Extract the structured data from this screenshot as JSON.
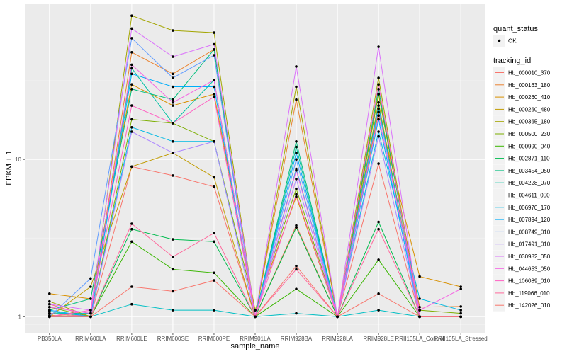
{
  "chart_data": {
    "type": "line",
    "title": "",
    "xlabel": "sample_name",
    "ylabel": "FPKM + 1",
    "yscale": "log10",
    "ylim": [
      0.79,
      98
    ],
    "y_ticks": [
      1,
      10
    ],
    "y_tick_labels": [
      "1",
      "10"
    ],
    "grid": true,
    "legend_placement": "right",
    "categories": [
      "PB350LA",
      "RRIM600LA",
      "RRIM600LE",
      "RRIM600SE",
      "RRIM600PE",
      "RRIM901LA",
      "RRIM928BA",
      "RRIM928LA",
      "RRIM928LE",
      "RRII105LA_Control",
      "RRII105LA_Stressed"
    ],
    "point_legend": {
      "title": "quant_status",
      "entries": [
        {
          "label": "OK",
          "color": "#000000"
        }
      ]
    },
    "line_legend_title": "tracking_id",
    "series": [
      {
        "name": "Hb_000010_370",
        "color": "#F8766D",
        "values": [
          1.2,
          1.0,
          9.0,
          7.9,
          6.7,
          1.0,
          3.8,
          1.0,
          9.4,
          1.0,
          1.0
        ]
      },
      {
        "name": "Hb_000163_180",
        "color": "#EA8331",
        "values": [
          1.02,
          1.0,
          48,
          35,
          50,
          1.0,
          24,
          1.0,
          26,
          1.15,
          1.16
        ]
      },
      {
        "name": "Hb_000260_410",
        "color": "#D89000",
        "values": [
          1.4,
          1.3,
          30,
          22,
          26,
          1.1,
          5.8,
          1.0,
          20,
          1.8,
          1.55
        ]
      },
      {
        "name": "Hb_000260_480",
        "color": "#C09B00",
        "values": [
          1.0,
          1.55,
          9.0,
          11,
          7.7,
          1.0,
          3.7,
          1.0,
          23,
          1.0,
          1.0
        ]
      },
      {
        "name": "Hb_000365_180",
        "color": "#A3A500",
        "values": [
          1.25,
          1.0,
          82,
          66,
          64,
          1.0,
          29,
          1.0,
          33,
          1.0,
          1.0
        ]
      },
      {
        "name": "Hb_000500_230",
        "color": "#7CAE00",
        "values": [
          1.15,
          1.0,
          18,
          17,
          13,
          1.1,
          6.5,
          1.0,
          26,
          1.1,
          1.05
        ]
      },
      {
        "name": "Hb_000990_040",
        "color": "#39B600",
        "values": [
          1.05,
          1.0,
          3.0,
          2.0,
          1.9,
          1.0,
          1.5,
          1.0,
          2.3,
          1.0,
          1.0
        ]
      },
      {
        "name": "Hb_002871_110",
        "color": "#00BB4E",
        "values": [
          1.0,
          1.0,
          3.6,
          3.1,
          3.0,
          1.0,
          3.7,
          1.0,
          4.0,
          1.0,
          1.0
        ]
      },
      {
        "name": "Hb_003454_050",
        "color": "#00BF7D",
        "values": [
          1.1,
          1.3,
          28,
          24,
          50,
          1.0,
          13,
          1.0,
          28,
          1.0,
          1.0
        ]
      },
      {
        "name": "Hb_004228_070",
        "color": "#00C1A3",
        "values": [
          1.05,
          1.05,
          38,
          17,
          32,
          1.0,
          12,
          1.0,
          22,
          1.0,
          1.0
        ]
      },
      {
        "name": "Hb_004611_050",
        "color": "#00BFC4",
        "values": [
          1.08,
          1.0,
          1.2,
          1.1,
          1.1,
          1.0,
          1.05,
          1.0,
          1.1,
          1.0,
          1.0
        ]
      },
      {
        "name": "Hb_006970_170",
        "color": "#00B9E3",
        "values": [
          1.0,
          1.0,
          16,
          13,
          13,
          1.0,
          8.7,
          1.0,
          15,
          1.3,
          1.1
        ]
      },
      {
        "name": "Hb_007894_120",
        "color": "#00ADFA",
        "values": [
          1.1,
          1.0,
          35,
          29,
          29,
          1.0,
          11,
          1.0,
          18,
          1.0,
          1.0
        ]
      },
      {
        "name": "Hb_008749_010",
        "color": "#619CFF",
        "values": [
          1.0,
          1.75,
          59,
          33,
          46,
          1.0,
          10,
          1.0,
          21,
          1.0,
          1.0
        ]
      },
      {
        "name": "Hb_017491_010",
        "color": "#AE87FF",
        "values": [
          1.0,
          1.0,
          15,
          11,
          13,
          1.0,
          7.5,
          1.0,
          14,
          1.0,
          1.0
        ]
      },
      {
        "name": "Hb_030982_050",
        "color": "#DB72FB",
        "values": [
          1.2,
          1.1,
          68,
          45,
          54,
          1.0,
          39,
          1.0,
          52,
          1.0,
          1.0
        ]
      },
      {
        "name": "Hb_044653_050",
        "color": "#F564E3",
        "values": [
          1.15,
          1.05,
          40,
          23,
          32,
          1.0,
          8.5,
          1.0,
          19,
          1.1,
          1.5
        ]
      },
      {
        "name": "Hb_106089_010",
        "color": "#FF61C3",
        "values": [
          1.0,
          1.1,
          22,
          17,
          25,
          1.0,
          6.0,
          1.0,
          30,
          1.0,
          1.0
        ]
      },
      {
        "name": "Hb_119066_010",
        "color": "#FF699C",
        "values": [
          1.05,
          1.0,
          3.9,
          2.4,
          3.4,
          1.0,
          2.0,
          1.0,
          3.6,
          1.0,
          1.0
        ]
      },
      {
        "name": "Hb_142026_010",
        "color": "#F8766D",
        "values": [
          1.0,
          1.0,
          1.55,
          1.45,
          1.7,
          1.0,
          2.1,
          1.0,
          1.4,
          1.0,
          1.0
        ]
      }
    ]
  }
}
